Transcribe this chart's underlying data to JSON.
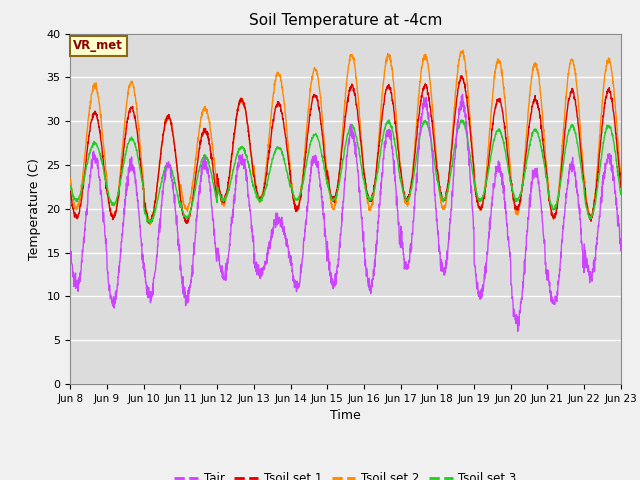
{
  "title": "Soil Temperature at -4cm",
  "xlabel": "Time",
  "ylabel": "Temperature (C)",
  "ylim": [
    0,
    40
  ],
  "background_color": "#dcdcdc",
  "colors": {
    "Tair": "#cc44ff",
    "Tsoil_set1": "#dd0000",
    "Tsoil_set2": "#ff8800",
    "Tsoil_set3": "#22cc22"
  },
  "x_tick_labels": [
    "Jun 8",
    "Jun 9",
    "Jun 10",
    "Jun 11",
    "Jun 12",
    "Jun 13",
    "Jun 14",
    "Jun 15",
    "Jun 16",
    "Jun 17",
    "Jun 18",
    "Jun 19",
    "Jun 20",
    "Jun 21",
    "Jun 22",
    "Jun 23"
  ],
  "vr_met_label": "VR_met",
  "legend_labels": [
    "Tair",
    "Tsoil set 1",
    "Tsoil set 2",
    "Tsoil set 3"
  ],
  "n_days": 15,
  "pts_per_day": 144
}
